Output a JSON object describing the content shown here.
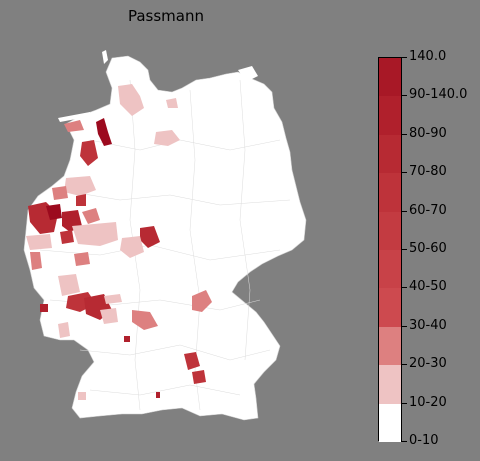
{
  "title": "Passmann",
  "legend": {
    "labels": [
      "140.0",
      "90-140.0",
      "80-90",
      "70-80",
      "60-70",
      "50-60",
      "40-50",
      "30-40",
      "20-30",
      "10-20",
      "0-10"
    ],
    "colors": [
      "#ffffff",
      "#eec3c3",
      "#dd8080",
      "#cd4a4f",
      "#c84248",
      "#c33b41",
      "#be333a",
      "#b72a33",
      "#b0202c",
      "#a81826",
      "#9c0a1e"
    ]
  },
  "map_colors": {
    "land": "#ffffff",
    "border": "#cccccc",
    "background": "#808080"
  }
}
